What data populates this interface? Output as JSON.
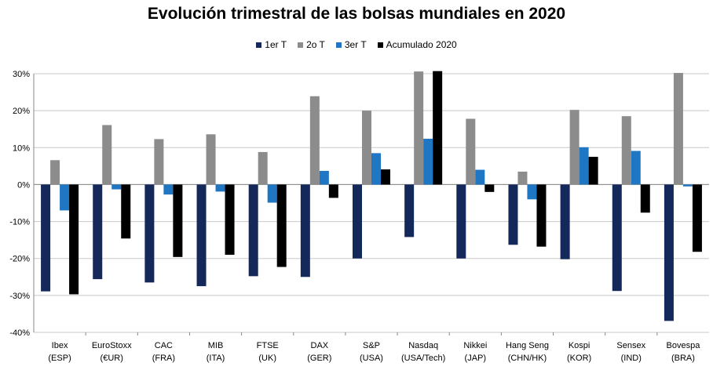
{
  "chart_data": {
    "type": "bar",
    "title": "Evolución trimestral de las bolsas mundiales en 2020",
    "categories": [
      [
        "Ibex",
        "(ESP)"
      ],
      [
        "EuroStoxx",
        "(€UR)"
      ],
      [
        "CAC",
        "(FRA)"
      ],
      [
        "MIB",
        "(ITA)"
      ],
      [
        "FTSE",
        "(UK)"
      ],
      [
        "DAX",
        "(GER)"
      ],
      [
        "S&P",
        "(USA)"
      ],
      [
        "Nasdaq",
        "(USA/Tech)"
      ],
      [
        "Nikkei",
        "(JAP)"
      ],
      [
        "Hang Seng",
        "(CHN/HK)"
      ],
      [
        "Kospi",
        "(KOR)"
      ],
      [
        "Sensex",
        "(IND)"
      ],
      [
        "Bovespa",
        "(BRA)"
      ]
    ],
    "series": [
      {
        "name": "1er T",
        "color": "#14285a",
        "values": [
          -28.9,
          -25.6,
          -26.5,
          -27.5,
          -24.8,
          -25.0,
          -20.0,
          -14.2,
          -20.0,
          -16.3,
          -20.2,
          -28.8,
          -36.9
        ]
      },
      {
        "name": "2o T",
        "color": "#8c8c8c",
        "values": [
          6.6,
          16.1,
          12.3,
          13.6,
          8.8,
          23.9,
          20.0,
          30.6,
          17.8,
          3.5,
          20.2,
          18.5,
          30.2
        ]
      },
      {
        "name": "3er T",
        "color": "#1f77c4",
        "values": [
          -7.0,
          -1.3,
          -2.7,
          -1.9,
          -4.9,
          3.7,
          8.5,
          12.4,
          4.0,
          -4.0,
          10.1,
          9.1,
          -0.5
        ]
      },
      {
        "name": "Acumulado 2020",
        "color": "#000000",
        "values": [
          -29.7,
          -14.6,
          -19.6,
          -19.0,
          -22.3,
          -3.6,
          4.1,
          30.7,
          -2.0,
          -16.8,
          7.5,
          -7.6,
          -18.2
        ]
      }
    ],
    "ylim": [
      -40,
      30
    ],
    "yticks": [
      30,
      20,
      10,
      0,
      -10,
      -20,
      -30,
      -40
    ],
    "ytick_labels": [
      "30%",
      "20%",
      "10%",
      "0%",
      "-10%",
      "-20%",
      "-30%",
      "-40%"
    ],
    "grid": true,
    "legend": "top-center",
    "xlabel": "",
    "ylabel": ""
  }
}
